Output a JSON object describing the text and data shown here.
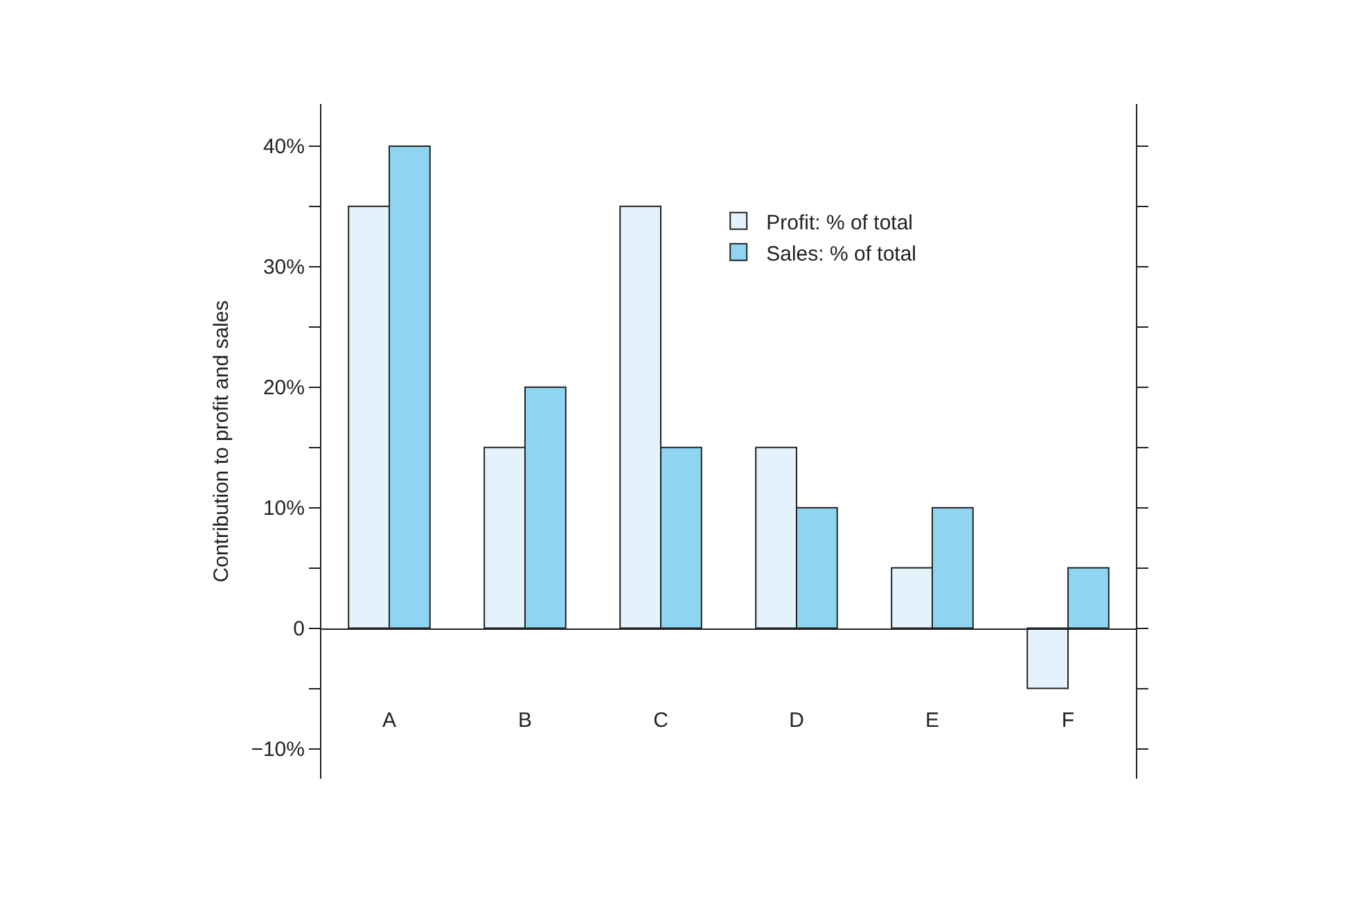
{
  "chart_data": {
    "type": "bar",
    "ylabel": "Contribution to profit and sales",
    "categories": [
      "A",
      "B",
      "C",
      "D",
      "E",
      "F"
    ],
    "series": [
      {
        "name": "Profit: % of total",
        "color": "#e4f3fb",
        "values": [
          35,
          15,
          35,
          15,
          5,
          -5
        ]
      },
      {
        "name": "Sales: % of total",
        "color": "#8fd5f1",
        "values": [
          40,
          20,
          15,
          10,
          10,
          5
        ]
      }
    ],
    "ylim": [
      -12.5,
      43.5
    ],
    "yticks": [
      {
        "value": -10,
        "label": "−10%"
      },
      {
        "value": -5,
        "label": null
      },
      0,
      {
        "value": 5,
        "label": null
      },
      {
        "value": 10,
        "label": "10%"
      },
      {
        "value": 15,
        "label": null
      },
      {
        "value": 20,
        "label": "20%"
      },
      {
        "value": 25,
        "label": null
      },
      {
        "value": 30,
        "label": "30%"
      },
      {
        "value": 35,
        "label": null
      },
      {
        "value": 40,
        "label": "40%"
      }
    ],
    "legend": "top right"
  }
}
